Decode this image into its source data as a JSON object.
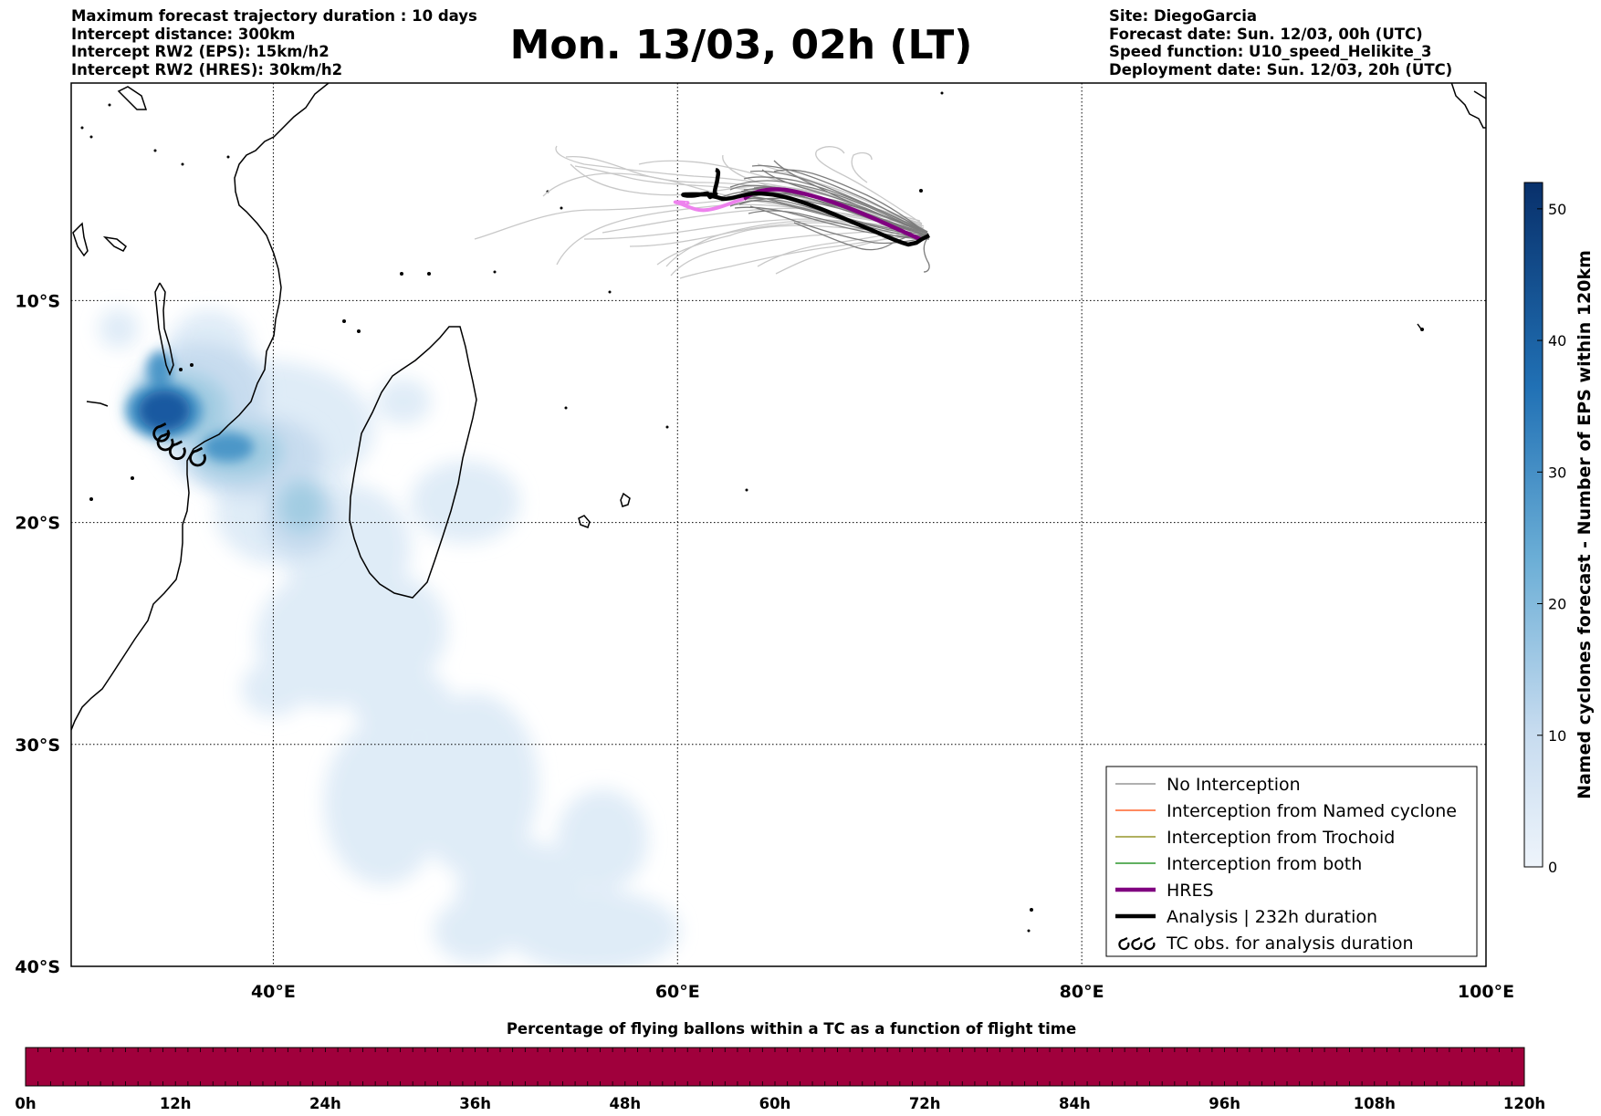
{
  "header": {
    "left_lines": [
      "Maximum forecast trajectory duration : 10 days",
      "Intercept distance: 300km",
      "Intercept RW2 (EPS):  15km/h2",
      "Intercept RW2 (HRES): 30km/h2"
    ],
    "title": "Mon. 13/03, 02h (LT)",
    "right_lines": [
      "Site: DiegoGarcia",
      "Forecast date: Sun. 12/03, 00h (UTC)",
      "Speed function: U10_speed_Helikite_3",
      "Deployment date: Sun. 12/03, 20h (UTC)"
    ]
  },
  "map": {
    "lon_range": [
      30,
      100
    ],
    "lat_range": [
      -40,
      -0.2
    ],
    "lat_ticks": [
      {
        "value": -10,
        "label": "10°S"
      },
      {
        "value": -20,
        "label": "20°S"
      },
      {
        "value": -30,
        "label": "30°S"
      },
      {
        "value": -40,
        "label": "40°S"
      }
    ],
    "lon_ticks": [
      {
        "value": 40,
        "label": "40°E"
      },
      {
        "value": 60,
        "label": "60°E"
      },
      {
        "value": 80,
        "label": "80°E"
      },
      {
        "value": 100,
        "label": "100°E"
      }
    ],
    "grid": "dotted",
    "tc_obs": [
      {
        "lon": 34.5,
        "lat": -16.0
      },
      {
        "lon": 34.7,
        "lat": -16.4
      },
      {
        "lon": 35.3,
        "lat": -16.8
      },
      {
        "lon": 36.3,
        "lat": -17.1
      }
    ]
  },
  "colorbar_right": {
    "label": "Named cyclones forecast - Number of EPS within 120km",
    "ticks": [
      "0",
      "10",
      "20",
      "30",
      "40",
      "50"
    ],
    "range": [
      0,
      52
    ],
    "colors": [
      "#e8f0fa",
      "#08306b"
    ]
  },
  "legend": {
    "placement": "lower-right",
    "items": [
      {
        "label": "No Interception",
        "color": "#808080",
        "weight": "thin"
      },
      {
        "label": "Interception from Named cyclone",
        "color": "#ff4500",
        "weight": "thin"
      },
      {
        "label": "Interception from Trochoid",
        "color": "#808000",
        "weight": "thin"
      },
      {
        "label": "Interception from both",
        "color": "#008000",
        "weight": "thin"
      },
      {
        "label": "HRES",
        "color": "#800080",
        "weight": "thick"
      },
      {
        "label": "Analysis | 232h duration",
        "color": "#000000",
        "weight": "thick"
      },
      {
        "label": "TC obs. for analysis duration",
        "color": "#000000",
        "weight": "symbol"
      }
    ]
  },
  "bottom_bar": {
    "title": "Percentage of flying ballons within a TC as a function of flight time",
    "ticks": [
      "0h",
      "12h",
      "24h",
      "36h",
      "48h",
      "60h",
      "72h",
      "84h",
      "96h",
      "108h",
      "120h"
    ],
    "fill_color": "#a0003c"
  }
}
